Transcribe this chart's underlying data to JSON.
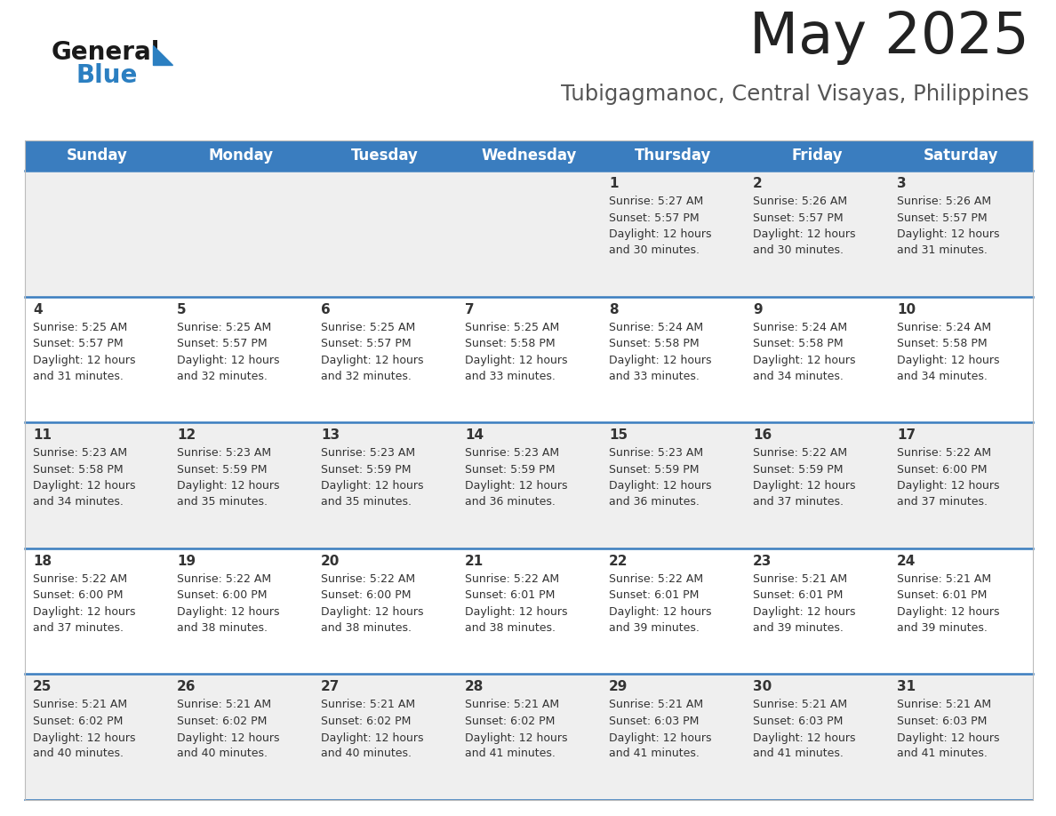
{
  "title": "May 2025",
  "subtitle": "Tubigagmanoc, Central Visayas, Philippines",
  "days_of_week": [
    "Sunday",
    "Monday",
    "Tuesday",
    "Wednesday",
    "Thursday",
    "Friday",
    "Saturday"
  ],
  "header_bg": "#3a7dbf",
  "header_text": "#ffffff",
  "row_bg_light": "#efefef",
  "row_bg_white": "#ffffff",
  "divider_color": "#3a7dbf",
  "text_color": "#333333",
  "title_color": "#222222",
  "subtitle_color": "#555555",
  "logo_color": "#1a1a1a",
  "logo_blue_color": "#2b7fc1",
  "calendar_data": [
    [
      null,
      null,
      null,
      null,
      {
        "day": 1,
        "sunrise": "5:27 AM",
        "sunset": "5:57 PM",
        "daylight": "12 hours",
        "daylight2": "and 30 minutes."
      },
      {
        "day": 2,
        "sunrise": "5:26 AM",
        "sunset": "5:57 PM",
        "daylight": "12 hours",
        "daylight2": "and 30 minutes."
      },
      {
        "day": 3,
        "sunrise": "5:26 AM",
        "sunset": "5:57 PM",
        "daylight": "12 hours",
        "daylight2": "and 31 minutes."
      }
    ],
    [
      {
        "day": 4,
        "sunrise": "5:25 AM",
        "sunset": "5:57 PM",
        "daylight": "12 hours",
        "daylight2": "and 31 minutes."
      },
      {
        "day": 5,
        "sunrise": "5:25 AM",
        "sunset": "5:57 PM",
        "daylight": "12 hours",
        "daylight2": "and 32 minutes."
      },
      {
        "day": 6,
        "sunrise": "5:25 AM",
        "sunset": "5:57 PM",
        "daylight": "12 hours",
        "daylight2": "and 32 minutes."
      },
      {
        "day": 7,
        "sunrise": "5:25 AM",
        "sunset": "5:58 PM",
        "daylight": "12 hours",
        "daylight2": "and 33 minutes."
      },
      {
        "day": 8,
        "sunrise": "5:24 AM",
        "sunset": "5:58 PM",
        "daylight": "12 hours",
        "daylight2": "and 33 minutes."
      },
      {
        "day": 9,
        "sunrise": "5:24 AM",
        "sunset": "5:58 PM",
        "daylight": "12 hours",
        "daylight2": "and 34 minutes."
      },
      {
        "day": 10,
        "sunrise": "5:24 AM",
        "sunset": "5:58 PM",
        "daylight": "12 hours",
        "daylight2": "and 34 minutes."
      }
    ],
    [
      {
        "day": 11,
        "sunrise": "5:23 AM",
        "sunset": "5:58 PM",
        "daylight": "12 hours",
        "daylight2": "and 34 minutes."
      },
      {
        "day": 12,
        "sunrise": "5:23 AM",
        "sunset": "5:59 PM",
        "daylight": "12 hours",
        "daylight2": "and 35 minutes."
      },
      {
        "day": 13,
        "sunrise": "5:23 AM",
        "sunset": "5:59 PM",
        "daylight": "12 hours",
        "daylight2": "and 35 minutes."
      },
      {
        "day": 14,
        "sunrise": "5:23 AM",
        "sunset": "5:59 PM",
        "daylight": "12 hours",
        "daylight2": "and 36 minutes."
      },
      {
        "day": 15,
        "sunrise": "5:23 AM",
        "sunset": "5:59 PM",
        "daylight": "12 hours",
        "daylight2": "and 36 minutes."
      },
      {
        "day": 16,
        "sunrise": "5:22 AM",
        "sunset": "5:59 PM",
        "daylight": "12 hours",
        "daylight2": "and 37 minutes."
      },
      {
        "day": 17,
        "sunrise": "5:22 AM",
        "sunset": "6:00 PM",
        "daylight": "12 hours",
        "daylight2": "and 37 minutes."
      }
    ],
    [
      {
        "day": 18,
        "sunrise": "5:22 AM",
        "sunset": "6:00 PM",
        "daylight": "12 hours",
        "daylight2": "and 37 minutes."
      },
      {
        "day": 19,
        "sunrise": "5:22 AM",
        "sunset": "6:00 PM",
        "daylight": "12 hours",
        "daylight2": "and 38 minutes."
      },
      {
        "day": 20,
        "sunrise": "5:22 AM",
        "sunset": "6:00 PM",
        "daylight": "12 hours",
        "daylight2": "and 38 minutes."
      },
      {
        "day": 21,
        "sunrise": "5:22 AM",
        "sunset": "6:01 PM",
        "daylight": "12 hours",
        "daylight2": "and 38 minutes."
      },
      {
        "day": 22,
        "sunrise": "5:22 AM",
        "sunset": "6:01 PM",
        "daylight": "12 hours",
        "daylight2": "and 39 minutes."
      },
      {
        "day": 23,
        "sunrise": "5:21 AM",
        "sunset": "6:01 PM",
        "daylight": "12 hours",
        "daylight2": "and 39 minutes."
      },
      {
        "day": 24,
        "sunrise": "5:21 AM",
        "sunset": "6:01 PM",
        "daylight": "12 hours",
        "daylight2": "and 39 minutes."
      }
    ],
    [
      {
        "day": 25,
        "sunrise": "5:21 AM",
        "sunset": "6:02 PM",
        "daylight": "12 hours",
        "daylight2": "and 40 minutes."
      },
      {
        "day": 26,
        "sunrise": "5:21 AM",
        "sunset": "6:02 PM",
        "daylight": "12 hours",
        "daylight2": "and 40 minutes."
      },
      {
        "day": 27,
        "sunrise": "5:21 AM",
        "sunset": "6:02 PM",
        "daylight": "12 hours",
        "daylight2": "and 40 minutes."
      },
      {
        "day": 28,
        "sunrise": "5:21 AM",
        "sunset": "6:02 PM",
        "daylight": "12 hours",
        "daylight2": "and 41 minutes."
      },
      {
        "day": 29,
        "sunrise": "5:21 AM",
        "sunset": "6:03 PM",
        "daylight": "12 hours",
        "daylight2": "and 41 minutes."
      },
      {
        "day": 30,
        "sunrise": "5:21 AM",
        "sunset": "6:03 PM",
        "daylight": "12 hours",
        "daylight2": "and 41 minutes."
      },
      {
        "day": 31,
        "sunrise": "5:21 AM",
        "sunset": "6:03 PM",
        "daylight": "12 hours",
        "daylight2": "and 41 minutes."
      }
    ]
  ]
}
